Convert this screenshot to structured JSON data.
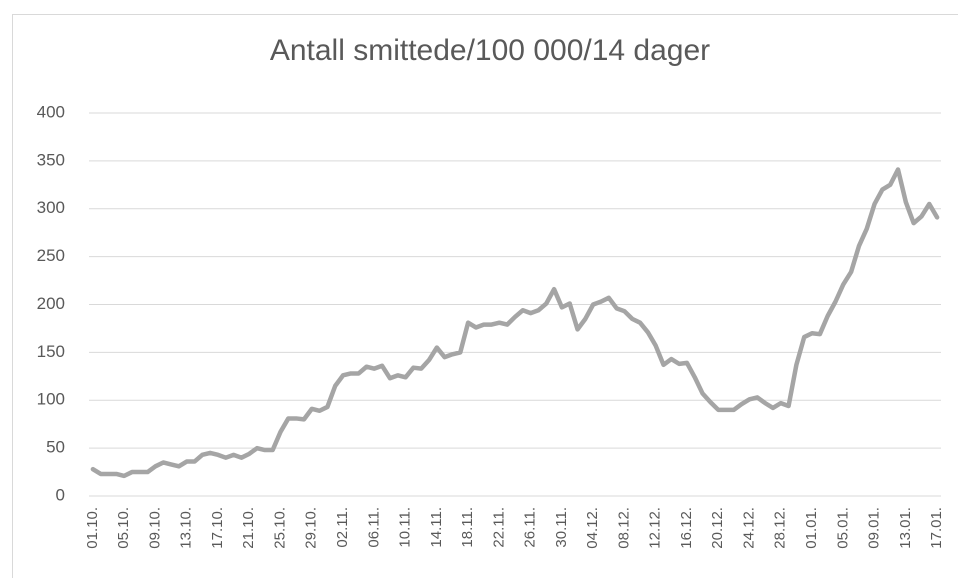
{
  "chart_data": {
    "type": "line",
    "title": "Antall smittede/100 000/14 dager",
    "categories": [
      "01.10.",
      null,
      null,
      null,
      "05.10.",
      null,
      null,
      null,
      "09.10.",
      null,
      null,
      null,
      "13.10.",
      null,
      null,
      null,
      "17.10.",
      null,
      null,
      null,
      "21.10.",
      null,
      null,
      null,
      "25.10.",
      null,
      null,
      null,
      "29.10.",
      null,
      null,
      null,
      "02.11.",
      null,
      null,
      null,
      "06.11.",
      null,
      null,
      null,
      "10.11.",
      null,
      null,
      null,
      "14.11.",
      null,
      null,
      null,
      "18.11.",
      null,
      null,
      null,
      "22.11.",
      null,
      null,
      null,
      "26.11.",
      null,
      null,
      null,
      "30.11.",
      null,
      null,
      null,
      "04.12.",
      null,
      null,
      null,
      "08.12.",
      null,
      null,
      null,
      "12.12.",
      null,
      null,
      null,
      "16.12.",
      null,
      null,
      null,
      "20.12.",
      null,
      null,
      null,
      "24.12.",
      null,
      null,
      null,
      "28.12.",
      null,
      null,
      null,
      "01.01.",
      null,
      null,
      null,
      "05.01.",
      null,
      null,
      null,
      "09.01.",
      null,
      null,
      null,
      "13.01.",
      null,
      null,
      null,
      "17.01."
    ],
    "values": [
      28,
      23,
      23,
      23,
      21,
      25,
      25,
      25,
      31,
      35,
      33,
      31,
      36,
      36,
      43,
      45,
      43,
      40,
      43,
      40,
      44,
      50,
      48,
      48,
      67,
      81,
      81,
      80,
      91,
      89,
      93,
      115,
      126,
      128,
      128,
      135,
      133,
      136,
      123,
      126,
      124,
      134,
      133,
      142,
      155,
      145,
      148,
      150,
      181,
      176,
      179,
      179,
      181,
      179,
      187,
      194,
      191,
      194,
      201,
      216,
      197,
      201,
      174,
      185,
      200,
      203,
      207,
      196,
      193,
      185,
      181,
      171,
      157,
      137,
      143,
      138,
      139,
      124,
      107,
      98,
      90,
      90,
      90,
      96,
      101,
      103,
      97,
      92,
      97,
      94,
      137,
      166,
      170,
      169,
      188,
      203,
      221,
      234,
      261,
      279,
      305,
      320,
      325,
      341,
      307,
      285,
      292,
      305,
      291
    ],
    "color": "#a5a5a5",
    "ylim": [
      0,
      400
    ],
    "yticks": [
      0,
      50,
      100,
      150,
      200,
      250,
      300,
      350,
      400
    ],
    "grid": true
  }
}
